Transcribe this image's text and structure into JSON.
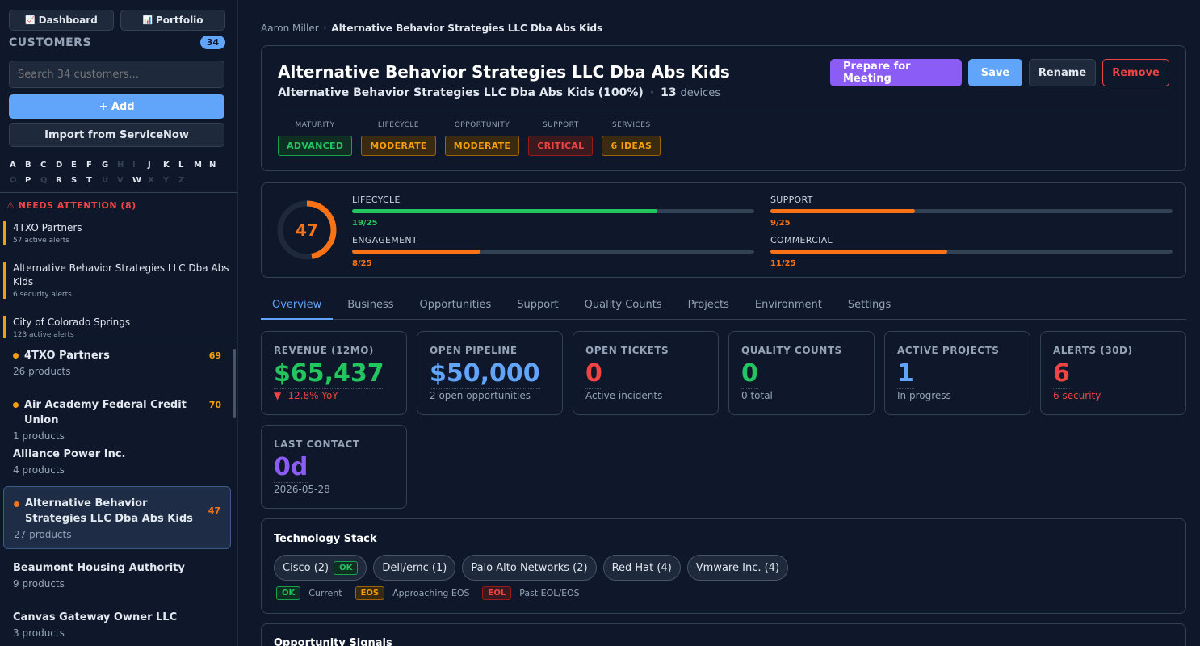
{
  "sidebar": {
    "nav": {
      "dashboard": "Dashboard",
      "dashboard_icon": "📈",
      "portfolio": "Portfolio",
      "portfolio_icon": "📊"
    },
    "customers_title": "CUSTOMERS",
    "customers_count": "34",
    "search_placeholder": "Search 34 customers...",
    "add_label": "+ Add",
    "import_label": "Import from ServiceNow",
    "alphabet_row1": [
      {
        "l": "A",
        "on": true
      },
      {
        "l": "B",
        "on": true
      },
      {
        "l": "C",
        "on": true
      },
      {
        "l": "D",
        "on": true
      },
      {
        "l": "E",
        "on": true
      },
      {
        "l": "F",
        "on": true
      },
      {
        "l": "G",
        "on": true
      },
      {
        "l": "H",
        "on": false
      },
      {
        "l": "I",
        "on": false
      },
      {
        "l": "J",
        "on": true
      },
      {
        "l": "K",
        "on": true
      },
      {
        "l": "L",
        "on": true
      },
      {
        "l": "M",
        "on": true
      },
      {
        "l": "N",
        "on": true
      }
    ],
    "alphabet_row2": [
      {
        "l": "O",
        "on": false
      },
      {
        "l": "P",
        "on": true
      },
      {
        "l": "Q",
        "on": false
      },
      {
        "l": "R",
        "on": true
      },
      {
        "l": "S",
        "on": true
      },
      {
        "l": "T",
        "on": true
      },
      {
        "l": "U",
        "on": false
      },
      {
        "l": "V",
        "on": false
      },
      {
        "l": "W",
        "on": true
      },
      {
        "l": "X",
        "on": false
      },
      {
        "l": "Y",
        "on": false
      },
      {
        "l": "Z",
        "on": false
      }
    ],
    "attention": {
      "title": "⚠ NEEDS ATTENTION (8)",
      "items": [
        {
          "name": "4TXO Partners",
          "sub": "57 active alerts"
        },
        {
          "name": "Alternative Behavior Strategies LLC Dba Abs Kids",
          "sub": "6 security alerts"
        },
        {
          "name": "City of Colorado Springs",
          "sub": "123 active alerts"
        }
      ]
    },
    "customers": [
      {
        "name": "4TXO Partners",
        "sub": "26 products",
        "score": "69"
      },
      {
        "name": "Air Academy Federal Credit Union",
        "sub": "1 products",
        "score": "70"
      },
      {
        "name": "Alliance Power Inc.",
        "sub": "4 products",
        "score": ""
      },
      {
        "name": "Alternative Behavior Strategies LLC Dba Abs Kids",
        "sub": "27 products",
        "score": "47"
      },
      {
        "name": "Beaumont Housing Authority",
        "sub": "9 products",
        "score": ""
      },
      {
        "name": "Canvas Gateway Owner LLC",
        "sub": "3 products",
        "score": ""
      }
    ]
  },
  "breadcrumb": {
    "parent": "Aaron Miller",
    "sep": "›",
    "current": "Alternative Behavior Strategies LLC Dba Abs Kids"
  },
  "header": {
    "title": "Alternative Behavior Strategies LLC Dba Abs Kids",
    "subtitle": "Alternative Behavior Strategies LLC Dba Abs Kids (100%)",
    "sep": "·",
    "devices_count": "13",
    "devices_label": "devices",
    "buttons": {
      "prepare": "Prepare for Meeting",
      "save": "Save",
      "rename": "Rename",
      "remove": "Remove"
    },
    "pills": [
      {
        "label": "MATURITY",
        "value": "ADVANCED",
        "tone": "green"
      },
      {
        "label": "LIFECYCLE",
        "value": "MODERATE",
        "tone": "amber"
      },
      {
        "label": "OPPORTUNITY",
        "value": "MODERATE",
        "tone": "amber"
      },
      {
        "label": "SUPPORT",
        "value": "CRITICAL",
        "tone": "red"
      },
      {
        "label": "SERVICES",
        "value": "6 IDEAS",
        "tone": "amber"
      }
    ]
  },
  "score": {
    "total": "47",
    "total_fraction": 0.47,
    "metrics": [
      {
        "label": "LIFECYCLE",
        "value": "19/25",
        "fraction": 0.76,
        "color": "#22c55e"
      },
      {
        "label": "SUPPORT",
        "value": "9/25",
        "fraction": 0.36,
        "color": "#f97316"
      },
      {
        "label": "ENGAGEMENT",
        "value": "8/25",
        "fraction": 0.32,
        "color": "#f97316"
      },
      {
        "label": "COMMERCIAL",
        "value": "11/25",
        "fraction": 0.44,
        "color": "#f97316"
      }
    ]
  },
  "tabs": [
    "Overview",
    "Business",
    "Opportunities",
    "Support",
    "Quality Counts",
    "Projects",
    "Environment",
    "Settings"
  ],
  "stats": [
    {
      "label": "REVENUE (12MO)",
      "value": "$65,437",
      "sub": "▼ -12.8% YoY",
      "color": "#22c55e",
      "sub_color": "#ef4444"
    },
    {
      "label": "OPEN PIPELINE",
      "value": "$50,000",
      "sub": "2 open opportunities",
      "color": "#60a5fa",
      "sub_color": "#94a3b8"
    },
    {
      "label": "OPEN TICKETS",
      "value": "0",
      "sub": "Active incidents",
      "color": "#ef4444",
      "sub_color": "#94a3b8"
    },
    {
      "label": "QUALITY COUNTS",
      "value": "0",
      "sub": "0 total",
      "color": "#22c55e",
      "sub_color": "#94a3b8"
    },
    {
      "label": "ACTIVE PROJECTS",
      "value": "1",
      "sub": "In progress",
      "color": "#60a5fa",
      "sub_color": "#94a3b8"
    },
    {
      "label": "ALERTS (30D)",
      "value": "6",
      "sub": "6 security",
      "color": "#ef4444",
      "sub_color": "#ef4444"
    },
    {
      "label": "LAST CONTACT",
      "value": "0d",
      "sub": "2026-05-28",
      "color": "#8b5cf6",
      "sub_color": "#94a3b8"
    }
  ],
  "tech": {
    "title": "Technology Stack",
    "chips": [
      {
        "name": "Cisco (2)",
        "tag": "OK"
      },
      {
        "name": "Dell/emc (1)",
        "tag": ""
      },
      {
        "name": "Palo Alto Networks (2)",
        "tag": ""
      },
      {
        "name": "Red Hat (4)",
        "tag": ""
      },
      {
        "name": "Vmware Inc. (4)",
        "tag": ""
      }
    ],
    "legend": [
      {
        "tag": "OK",
        "text": "Current"
      },
      {
        "tag": "EOS",
        "text": "Approaching EOS"
      },
      {
        "tag": "EOL",
        "text": "Past EOL/EOS"
      }
    ]
  },
  "opportunity_signals_title": "Opportunity Signals"
}
